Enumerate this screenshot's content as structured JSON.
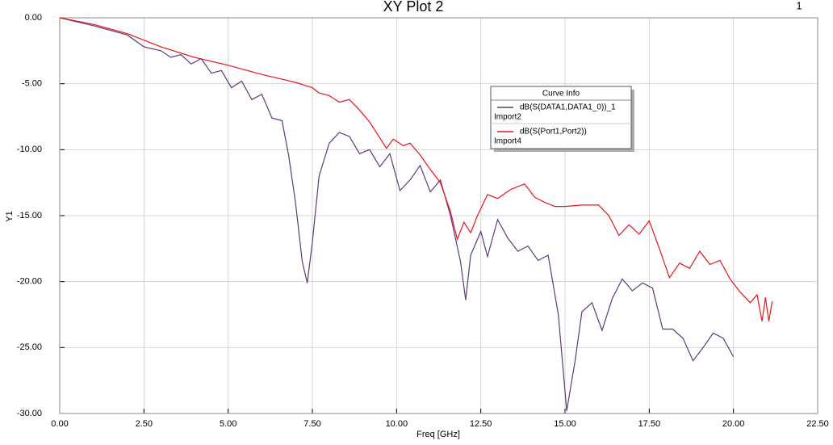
{
  "chart_data": {
    "type": "line",
    "title": "XY Plot 2",
    "plot_number": "1",
    "xlabel": "Freq [GHz]",
    "ylabel": "Y1",
    "xlim": [
      0,
      22.5
    ],
    "ylim": [
      -30,
      0
    ],
    "xticks": [
      {
        "value": 0,
        "label": "0.00"
      },
      {
        "value": 2.5,
        "label": "2.50"
      },
      {
        "value": 5,
        "label": "5.00"
      },
      {
        "value": 7.5,
        "label": "7.50"
      },
      {
        "value": 10,
        "label": "10.00"
      },
      {
        "value": 12.5,
        "label": "12.50"
      },
      {
        "value": 15,
        "label": "15.00"
      },
      {
        "value": 17.5,
        "label": "17.50"
      },
      {
        "value": 20,
        "label": "20.00"
      },
      {
        "value": 22.5,
        "label": "22.50"
      }
    ],
    "yticks": [
      {
        "value": 0,
        "label": "0.00"
      },
      {
        "value": -5,
        "label": "-5.00"
      },
      {
        "value": -10,
        "label": "-10.00"
      },
      {
        "value": -15,
        "label": "-15.00"
      },
      {
        "value": -20,
        "label": "-20.00"
      },
      {
        "value": -25,
        "label": "-25.00"
      },
      {
        "value": -30,
        "label": "-30.00"
      }
    ],
    "grid": true,
    "legend_title": "Curve Info",
    "series": [
      {
        "name": "dB(S(DATA1,DATA1_0))_1",
        "source": "Import2",
        "color": "#5e3a78",
        "x": [
          0,
          1,
          2,
          2.5,
          3,
          3.3,
          3.6,
          3.9,
          4.2,
          4.5,
          4.8,
          5.1,
          5.4,
          5.7,
          6.0,
          6.3,
          6.6,
          6.8,
          7.0,
          7.2,
          7.35,
          7.5,
          7.7,
          8.0,
          8.3,
          8.6,
          8.9,
          9.2,
          9.5,
          9.8,
          10.1,
          10.4,
          10.7,
          11.0,
          11.3,
          11.6,
          11.9,
          12.05,
          12.2,
          12.5,
          12.7,
          13.0,
          13.3,
          13.6,
          13.9,
          14.2,
          14.5,
          14.8,
          15.05,
          15.3,
          15.5,
          15.8,
          16.1,
          16.4,
          16.7,
          17.0,
          17.3,
          17.6,
          17.9,
          18.2,
          18.5,
          18.8,
          19.1,
          19.4,
          19.7,
          20.0
        ],
        "values": [
          0,
          -0.6,
          -1.3,
          -2.2,
          -2.5,
          -3.0,
          -2.8,
          -3.5,
          -3.1,
          -4.2,
          -4.0,
          -5.3,
          -4.8,
          -6.2,
          -5.8,
          -7.6,
          -7.8,
          -10.5,
          -14,
          -18.5,
          -20.1,
          -17,
          -12,
          -9.5,
          -8.7,
          -9.0,
          -10.3,
          -10.0,
          -11.3,
          -10.3,
          -13.1,
          -12.3,
          -11.2,
          -13.2,
          -12.3,
          -15.0,
          -18.5,
          -21.4,
          -18.0,
          -16.2,
          -18.1,
          -15.3,
          -16.7,
          -17.7,
          -17.3,
          -18.4,
          -18.0,
          -22.5,
          -29.8,
          -26,
          -22.3,
          -21.6,
          -23.7,
          -21.3,
          -19.8,
          -20.7,
          -20.1,
          -20.5,
          -23.6,
          -23.6,
          -24.3,
          -26.0,
          -25.0,
          -23.9,
          -24.3,
          -25.7
        ]
      },
      {
        "name": "dB(S(Port1,Port2))",
        "source": "Import4",
        "color": "#e8141c",
        "x": [
          0,
          1,
          2,
          3,
          4,
          5,
          6,
          6.5,
          7,
          7.5,
          7.7,
          8.0,
          8.3,
          8.6,
          8.9,
          9.2,
          9.5,
          9.7,
          9.9,
          10.2,
          10.4,
          10.7,
          11.0,
          11.3,
          11.6,
          11.8,
          12.0,
          12.2,
          12.4,
          12.7,
          13.0,
          13.4,
          13.8,
          14.1,
          14.4,
          14.7,
          15.0,
          15.5,
          16.0,
          16.3,
          16.6,
          16.9,
          17.2,
          17.5,
          17.8,
          18.1,
          18.4,
          18.7,
          19.0,
          19.3,
          19.6,
          19.9,
          20.2,
          20.5,
          20.7,
          20.85,
          20.95,
          21.05,
          21.15
        ],
        "values": [
          0,
          -0.5,
          -1.2,
          -2.2,
          -3.0,
          -3.6,
          -4.3,
          -4.6,
          -4.9,
          -5.3,
          -5.7,
          -5.9,
          -6.4,
          -6.2,
          -7.0,
          -7.9,
          -9.1,
          -9.9,
          -9.2,
          -9.7,
          -9.5,
          -10.4,
          -11.5,
          -12.5,
          -14.7,
          -16.8,
          -15.5,
          -16.3,
          -15.0,
          -13.4,
          -13.7,
          -13.0,
          -12.6,
          -13.6,
          -14.0,
          -14.3,
          -14.3,
          -14.2,
          -14.2,
          -15.0,
          -16.5,
          -15.7,
          -16.4,
          -15.4,
          -17.5,
          -19.7,
          -18.6,
          -19.0,
          -17.7,
          -18.7,
          -18.4,
          -19.8,
          -20.8,
          -21.6,
          -21.0,
          -23.0,
          -21.2,
          -23.0,
          -21.5
        ]
      }
    ]
  }
}
